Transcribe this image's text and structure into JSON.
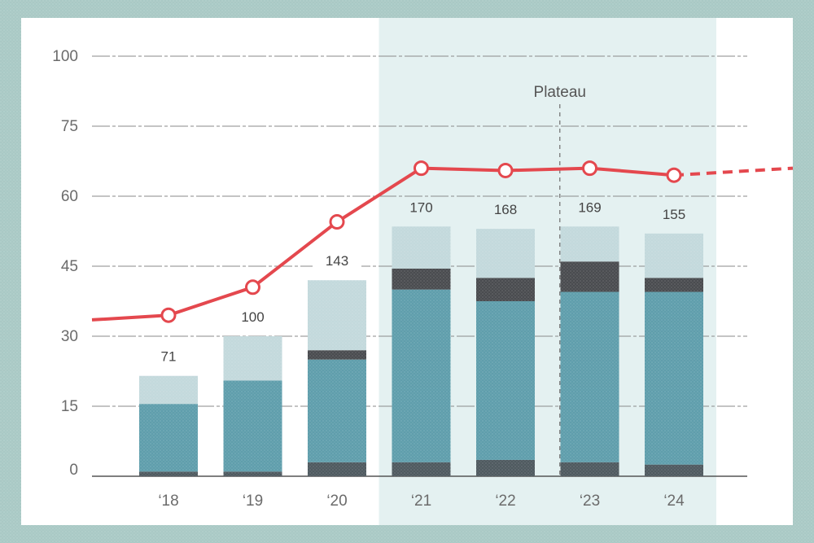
{
  "chart_data": {
    "type": "bar",
    "categories": [
      "‘18",
      "‘19",
      "‘20",
      "‘21",
      "‘22",
      "‘23",
      "‘24"
    ],
    "y_tick_labels": [
      "0",
      "15",
      "30",
      "45",
      "60",
      "75",
      "100"
    ],
    "stacks": [
      [
        1,
        14.5,
        0,
        6
      ],
      [
        1,
        19.5,
        0,
        9.5
      ],
      [
        3,
        22,
        2,
        15
      ],
      [
        3,
        37,
        4.5,
        9
      ],
      [
        3.5,
        34,
        5,
        10.5
      ],
      [
        3,
        36.5,
        6.5,
        7.5
      ],
      [
        2.5,
        37,
        3,
        9.5
      ]
    ],
    "segment_colors": [
      "#4f5a60",
      "#5f9eac",
      "#4a4c50",
      "#c3d9dc"
    ],
    "bar_totals": [
      "71",
      "100",
      "143",
      "170",
      "168",
      "169",
      "155"
    ],
    "line": {
      "color": "#e4484e",
      "values": [
        34.5,
        40.5,
        54.5,
        66,
        65.5,
        66,
        64.5
      ],
      "start_value": 33.5,
      "projected_end_value": 66
    },
    "highlight_range": [
      "‘21",
      "‘24"
    ],
    "highlight_color": "#e4f1f1",
    "annotation": {
      "text": "Plateau",
      "between": [
        "‘22",
        "‘23"
      ]
    },
    "grid": true,
    "xlabel": "",
    "ylabel": ""
  }
}
